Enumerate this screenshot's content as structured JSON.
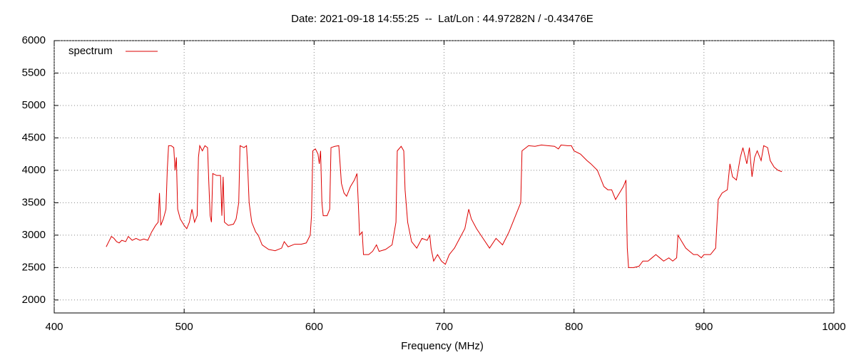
{
  "chart_data": {
    "type": "line",
    "title": "Date: 2021-09-18 14:55:25  --  Lat/Lon : 44.97282N / -0.43476E",
    "x_label": "Frequency (MHz)",
    "x": [
      440,
      442,
      444,
      446,
      448,
      450,
      452,
      455,
      457,
      460,
      463,
      466,
      469,
      472,
      475,
      478,
      480,
      481,
      482,
      484,
      486,
      487,
      488,
      490,
      492,
      493,
      494,
      495,
      497,
      500,
      502,
      504,
      506,
      508,
      510,
      511,
      512,
      514,
      516,
      518,
      519,
      520,
      521,
      522,
      525,
      528,
      529,
      530,
      531,
      534,
      538,
      540,
      542,
      543,
      546,
      548,
      549,
      550,
      552,
      555,
      557,
      560,
      565,
      570,
      575,
      577,
      580,
      585,
      590,
      594,
      597,
      598,
      599,
      601,
      603,
      604,
      605,
      606,
      607,
      610,
      612,
      613,
      616,
      619,
      620,
      621,
      623,
      625,
      628,
      631,
      633,
      634,
      635,
      637,
      638,
      642,
      645,
      648,
      650,
      655,
      660,
      663,
      664,
      667,
      669,
      670,
      672,
      675,
      679,
      683,
      687,
      689,
      690,
      692,
      695,
      698,
      701,
      704,
      708,
      712,
      716,
      719,
      721,
      725,
      730,
      735,
      740,
      745,
      750,
      755,
      759,
      760,
      765,
      770,
      775,
      780,
      785,
      788,
      790,
      795,
      798,
      800,
      805,
      810,
      813,
      818,
      820,
      823,
      826,
      829,
      832,
      835,
      838,
      840,
      841,
      842,
      846,
      850,
      853,
      857,
      860,
      863,
      866,
      869,
      873,
      876,
      879,
      880,
      883,
      886,
      889,
      892,
      895,
      898,
      900,
      905,
      909,
      911,
      914,
      918,
      920,
      922,
      925,
      928,
      930,
      933,
      935,
      937,
      939,
      941,
      944,
      946,
      949,
      951,
      954,
      957,
      960
    ],
    "series": [
      {
        "name": "spectrum",
        "color": "#dd0000",
        "values": [
          2820,
          2900,
          2980,
          2950,
          2900,
          2880,
          2920,
          2900,
          2980,
          2920,
          2950,
          2920,
          2940,
          2920,
          3050,
          3150,
          3200,
          3650,
          3150,
          3250,
          3400,
          4000,
          4380,
          4380,
          4350,
          4000,
          4200,
          3400,
          3250,
          3150,
          3100,
          3200,
          3400,
          3200,
          3300,
          4200,
          4380,
          4300,
          4380,
          4350,
          3800,
          3300,
          3200,
          3950,
          3920,
          3920,
          3300,
          3900,
          3200,
          3150,
          3170,
          3250,
          3500,
          4380,
          4350,
          4380,
          4000,
          3500,
          3200,
          3050,
          3000,
          2850,
          2780,
          2760,
          2800,
          2900,
          2820,
          2860,
          2860,
          2880,
          3000,
          3300,
          4300,
          4330,
          4250,
          4100,
          4300,
          3500,
          3300,
          3300,
          3400,
          4350,
          4370,
          4380,
          4100,
          3800,
          3650,
          3600,
          3750,
          3850,
          3950,
          3500,
          3000,
          3050,
          2700,
          2700,
          2750,
          2850,
          2750,
          2780,
          2850,
          3200,
          4300,
          4370,
          4300,
          3700,
          3200,
          2900,
          2800,
          2950,
          2920,
          3000,
          2800,
          2600,
          2700,
          2600,
          2550,
          2700,
          2800,
          2950,
          3100,
          3400,
          3250,
          3100,
          2950,
          2800,
          2950,
          2850,
          3050,
          3300,
          3500,
          4300,
          4380,
          4370,
          4390,
          4380,
          4370,
          4330,
          4390,
          4380,
          4380,
          4300,
          4250,
          4150,
          4100,
          4000,
          3900,
          3750,
          3700,
          3700,
          3550,
          3650,
          3750,
          3850,
          2800,
          2500,
          2500,
          2520,
          2600,
          2600,
          2650,
          2700,
          2650,
          2600,
          2650,
          2600,
          2650,
          3000,
          2900,
          2800,
          2750,
          2700,
          2700,
          2650,
          2700,
          2700,
          2800,
          3550,
          3650,
          3700,
          4100,
          3900,
          3850,
          4200,
          4350,
          4100,
          4350,
          3900,
          4200,
          4300,
          4150,
          4380,
          4350,
          4150,
          4050,
          4000,
          3980
        ]
      }
    ],
    "xlim": [
      400,
      1000
    ],
    "xticks": [
      400,
      500,
      600,
      700,
      800,
      900,
      1000
    ],
    "ylim": [
      1800,
      6000
    ],
    "yticks": [
      2000,
      2500,
      3000,
      3500,
      4000,
      4500,
      5000,
      5500,
      6000
    ],
    "grid": true,
    "legend": "top-left"
  }
}
